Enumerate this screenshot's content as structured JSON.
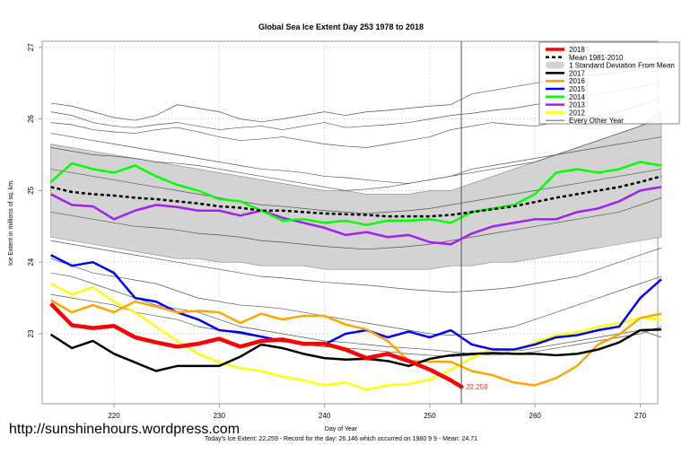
{
  "chart_data": {
    "type": "line",
    "title": "Global Sea Ice Extent Day 253 1978 to 2018",
    "xlabel": "Day of Year",
    "ylabel": "Ice Extent in millions of sq. km.",
    "xlim": [
      213.5,
      273
    ],
    "ylim": [
      21.9,
      27.1
    ],
    "xticks": [
      220,
      230,
      240,
      250,
      260,
      270
    ],
    "yticks": [
      23,
      24,
      25,
      26,
      27
    ],
    "grid": true,
    "current_day": 253,
    "current_value_label": "22.259",
    "legend_position": "top-right",
    "legend": [
      {
        "label": "2018",
        "color": "#ff0000",
        "style": "thick"
      },
      {
        "label": "Mean 1981-2010",
        "color": "#000000",
        "style": "dashed"
      },
      {
        "label": "1 Standard Deviation From Mean",
        "color": "#d3d3d3",
        "style": "band"
      },
      {
        "label": "2017",
        "color": "#000000",
        "style": "solid"
      },
      {
        "label": "2016",
        "color": "#ffa500",
        "style": "solid"
      },
      {
        "label": "2015",
        "color": "#0000ff",
        "style": "solid"
      },
      {
        "label": "2014",
        "color": "#00ff00",
        "style": "solid"
      },
      {
        "label": "2013",
        "color": "#a020f0",
        "style": "solid"
      },
      {
        "label": "2012",
        "color": "#ffff00",
        "style": "solid"
      },
      {
        "label": "Every Other Year",
        "color": "#555555",
        "style": "thin"
      }
    ],
    "x": [
      214,
      216,
      218,
      220,
      222,
      224,
      226,
      228,
      230,
      232,
      234,
      236,
      238,
      240,
      242,
      244,
      246,
      248,
      250,
      252,
      254,
      256,
      258,
      260,
      262,
      264,
      266,
      268,
      270,
      272
    ],
    "band": {
      "upper": [
        25.65,
        25.6,
        25.55,
        25.5,
        25.45,
        25.4,
        25.35,
        25.3,
        25.25,
        25.2,
        25.15,
        25.1,
        25.05,
        25.0,
        25.0,
        24.95,
        24.95,
        24.95,
        25.0,
        25.0,
        25.1,
        25.2,
        25.3,
        25.4,
        25.5,
        25.6,
        25.7,
        25.8,
        25.9,
        26.1
      ],
      "lower": [
        24.35,
        24.3,
        24.25,
        24.2,
        24.15,
        24.1,
        24.05,
        24.05,
        24.0,
        24.0,
        23.95,
        23.95,
        23.95,
        23.9,
        23.9,
        23.9,
        23.9,
        23.9,
        23.9,
        23.95,
        23.95,
        24.0,
        24.0,
        24.05,
        24.1,
        24.15,
        24.2,
        24.25,
        24.3,
        24.35
      ]
    },
    "series": [
      {
        "name": "2018",
        "color": "#ff0000",
        "width": 4.5,
        "values": [
          23.42,
          23.12,
          23.08,
          23.11,
          22.95,
          22.88,
          22.82,
          22.86,
          22.93,
          22.82,
          22.9,
          22.92,
          22.86,
          22.86,
          22.78,
          22.66,
          22.72,
          22.62,
          22.5,
          22.35,
          null,
          null,
          null,
          null,
          null,
          null,
          null,
          null,
          null,
          null
        ],
        "end_day": 253,
        "end_value": 22.259
      },
      {
        "name": "Mean 1981-2010",
        "color": "#000000",
        "width": 2.5,
        "dash": "4,3",
        "values": [
          25.05,
          24.98,
          24.95,
          24.93,
          24.9,
          24.88,
          24.85,
          24.82,
          24.78,
          24.76,
          24.72,
          24.72,
          24.7,
          24.68,
          24.67,
          24.66,
          24.64,
          24.64,
          24.64,
          24.66,
          24.7,
          24.74,
          24.78,
          24.84,
          24.9,
          24.95,
          25.0,
          25.05,
          25.12,
          25.2
        ]
      },
      {
        "name": "2017",
        "color": "#000000",
        "width": 2.5,
        "values": [
          22.99,
          22.8,
          22.9,
          22.72,
          22.6,
          22.48,
          22.55,
          22.55,
          22.55,
          22.68,
          22.85,
          22.8,
          22.72,
          22.66,
          22.64,
          22.65,
          22.62,
          22.55,
          22.65,
          22.7,
          22.72,
          22.73,
          22.72,
          22.72,
          22.7,
          22.72,
          22.78,
          22.88,
          23.05,
          23.06
        ]
      },
      {
        "name": "2016",
        "color": "#ffa500",
        "width": 2.5,
        "values": [
          23.47,
          23.3,
          23.4,
          23.3,
          23.45,
          23.38,
          23.3,
          23.32,
          23.3,
          23.15,
          23.28,
          23.2,
          23.25,
          23.25,
          23.13,
          23.06,
          22.9,
          22.62,
          22.61,
          22.61,
          22.48,
          22.42,
          22.32,
          22.28,
          22.38,
          22.55,
          22.85,
          22.99,
          23.22,
          23.28
        ]
      },
      {
        "name": "2015",
        "color": "#0000ff",
        "width": 2.5,
        "values": [
          24.1,
          23.95,
          24.0,
          23.85,
          23.5,
          23.45,
          23.3,
          23.2,
          23.05,
          23.02,
          22.96,
          22.9,
          22.87,
          22.85,
          23.0,
          23.05,
          22.95,
          23.03,
          22.95,
          23.05,
          22.85,
          22.78,
          22.78,
          22.85,
          22.95,
          22.98,
          23.05,
          23.1,
          23.5,
          23.76
        ]
      },
      {
        "name": "2014",
        "color": "#00ff00",
        "width": 2.5,
        "values": [
          25.12,
          25.38,
          25.3,
          25.25,
          25.35,
          25.2,
          25.08,
          25.0,
          24.88,
          24.85,
          24.72,
          24.58,
          24.6,
          24.55,
          24.58,
          24.52,
          24.58,
          24.58,
          24.6,
          24.55,
          24.7,
          24.75,
          24.8,
          24.95,
          25.25,
          25.3,
          25.25,
          25.3,
          25.4,
          25.35
        ]
      },
      {
        "name": "2013",
        "color": "#a020f0",
        "width": 2.5,
        "values": [
          24.95,
          24.8,
          24.78,
          24.6,
          24.72,
          24.8,
          24.77,
          24.72,
          24.72,
          24.65,
          24.72,
          24.62,
          24.55,
          24.48,
          24.38,
          24.42,
          24.35,
          24.38,
          24.28,
          24.25,
          24.4,
          24.5,
          24.55,
          24.6,
          24.6,
          24.7,
          24.75,
          24.85,
          25.0,
          25.05
        ]
      },
      {
        "name": "2012",
        "color": "#ffff00",
        "width": 2.5,
        "values": [
          23.7,
          23.55,
          23.65,
          23.45,
          23.3,
          23.1,
          22.9,
          22.72,
          22.6,
          22.52,
          22.48,
          22.4,
          22.35,
          22.28,
          22.32,
          22.22,
          22.28,
          22.3,
          22.36,
          22.5,
          22.66,
          22.8,
          22.75,
          22.88,
          22.98,
          23.02,
          23.1,
          23.15,
          23.22,
          23.2
        ]
      }
    ],
    "other_years": [
      [
        26.22,
        26.18,
        26.1,
        26.02,
        25.98,
        26.05,
        26.2,
        26.15,
        26.1,
        26.0,
        25.96,
        26.0,
        26.05,
        26.1,
        26.05,
        26.1,
        26.12,
        26.15,
        26.18,
        26.2,
        26.35,
        26.4,
        26.45,
        26.5,
        26.55,
        26.6,
        26.62,
        26.65,
        26.7,
        26.8
      ],
      [
        26.1,
        26.05,
        25.95,
        25.9,
        25.88,
        25.92,
        25.95,
        25.9,
        25.85,
        25.88,
        25.9,
        25.85,
        25.9,
        25.95,
        25.88,
        25.9,
        25.92,
        25.95,
        26.0,
        26.05,
        26.08,
        26.12,
        26.15,
        26.2,
        26.25,
        26.3,
        26.35,
        26.4,
        26.45,
        26.5
      ],
      [
        25.95,
        25.92,
        25.85,
        25.82,
        25.8,
        25.85,
        25.88,
        25.82,
        25.75,
        25.7,
        25.72,
        25.75,
        25.7,
        25.65,
        25.62,
        25.6,
        25.65,
        25.7,
        25.75,
        25.85,
        25.9,
        25.95,
        25.92,
        25.9,
        25.95,
        26.0,
        26.05,
        26.1,
        26.2,
        26.3
      ],
      [
        25.8,
        25.75,
        25.7,
        25.65,
        25.6,
        25.55,
        25.5,
        25.45,
        25.4,
        25.35,
        25.3,
        25.28,
        25.25,
        25.2,
        25.18,
        25.15,
        25.12,
        25.1,
        25.15,
        25.2,
        25.25,
        25.3,
        25.35,
        25.4,
        25.5,
        25.6,
        25.7,
        25.8,
        25.9,
        26.0
      ],
      [
        25.6,
        25.55,
        25.5,
        25.48,
        25.45,
        25.4,
        25.38,
        25.35,
        25.3,
        25.25,
        25.2,
        25.15,
        25.1,
        25.05,
        25.0,
        25.02,
        25.05,
        25.1,
        25.15,
        25.2,
        25.3,
        25.35,
        25.4,
        25.45,
        25.5,
        25.55,
        25.6,
        25.65,
        25.7,
        25.75
      ],
      [
        25.3,
        25.25,
        25.2,
        25.15,
        25.1,
        25.05,
        25.0,
        24.95,
        24.9,
        24.85,
        24.8,
        24.78,
        24.75,
        24.72,
        24.7,
        24.68,
        24.7,
        24.72,
        24.75,
        24.8,
        24.85,
        24.9,
        24.95,
        25.0,
        25.05,
        25.1,
        25.15,
        25.2,
        25.25,
        25.3
      ],
      [
        24.7,
        24.65,
        24.6,
        24.55,
        24.5,
        24.48,
        24.45,
        24.4,
        24.38,
        24.35,
        24.3,
        24.28,
        24.25,
        24.22,
        24.2,
        24.18,
        24.2,
        24.22,
        24.25,
        24.3,
        24.35,
        24.4,
        24.45,
        24.5,
        24.55,
        24.6,
        24.65,
        24.7,
        24.8,
        24.9
      ],
      [
        24.3,
        24.25,
        24.2,
        24.15,
        24.1,
        24.05,
        24.0,
        23.95,
        23.9,
        23.85,
        23.8,
        23.78,
        23.75,
        23.72,
        23.7,
        23.68,
        23.65,
        23.62,
        23.6,
        23.58,
        23.6,
        23.62,
        23.65,
        23.7,
        23.75,
        23.8,
        23.9,
        24.0,
        24.1,
        24.2
      ],
      [
        24.05,
        23.95,
        23.85,
        23.8,
        23.75,
        23.7,
        23.6,
        23.5,
        23.45,
        23.4,
        23.38,
        23.35,
        23.3,
        23.25,
        23.2,
        23.15,
        23.1,
        23.05,
        23.0,
        22.98,
        23.0,
        23.05,
        23.1,
        23.2,
        23.3,
        23.4,
        23.5,
        23.6,
        23.7,
        23.8
      ],
      [
        23.85,
        23.8,
        23.7,
        23.6,
        23.5,
        23.4,
        23.35,
        23.3,
        23.2,
        23.1,
        23.05,
        23.0,
        22.95,
        22.9,
        22.88,
        22.85,
        22.82,
        22.8,
        22.78,
        22.75,
        22.72,
        22.7,
        22.72,
        22.75,
        22.8,
        22.85,
        22.9,
        22.95,
        23.0,
        23.1
      ],
      [
        23.55,
        23.5,
        23.45,
        23.4,
        23.3,
        23.25,
        23.2,
        23.1,
        23.05,
        23.0,
        22.95,
        22.9,
        22.85,
        22.82,
        22.8,
        22.78,
        22.75,
        22.72,
        22.7,
        22.68,
        22.7,
        22.72,
        22.75,
        22.8,
        22.85,
        22.9,
        22.95,
        23.0,
        23.05,
        22.95
      ]
    ]
  },
  "footer": {
    "url": "http://sunshinehours.wordpress.com",
    "summary": "Today's Ice Extent: 22.259  - Record for the day: 26.146 which occurred on 1980 9 9  - Mean: 24.71"
  }
}
